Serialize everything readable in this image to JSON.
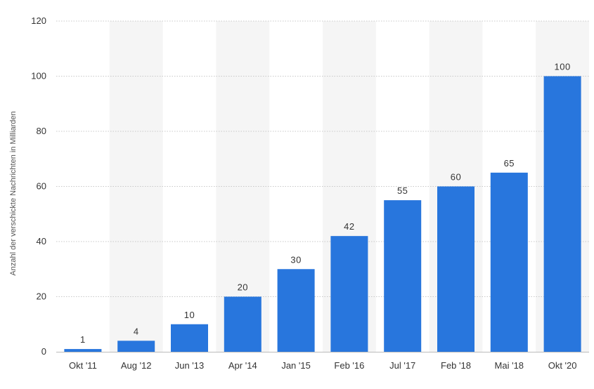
{
  "chart_data": {
    "type": "bar",
    "title": "",
    "xlabel": "",
    "ylabel": "Anzahl der verschickte Nachrichten in Milliarden",
    "categories": [
      "Okt '11",
      "Aug '12",
      "Jun '13",
      "Apr '14",
      "Jan '15",
      "Feb '16",
      "Jul '17",
      "Feb '18",
      "Mai '18",
      "Okt '20"
    ],
    "values": [
      1,
      4,
      10,
      20,
      30,
      42,
      55,
      60,
      65,
      100
    ],
    "value_labels": [
      "1",
      "4",
      "10",
      "20",
      "30",
      "42",
      "55",
      "60",
      "65",
      "100"
    ],
    "ylim": [
      0,
      120
    ],
    "yticks": [
      0,
      20,
      40,
      60,
      80,
      100,
      120
    ],
    "ytick_labels": [
      "0",
      "20",
      "40",
      "60",
      "80",
      "100",
      "120"
    ],
    "grid": true,
    "legend": "none",
    "colors": {
      "bar": "#2876dd",
      "band": "#f5f5f5",
      "grid": "#c8c8c8",
      "text": "#333333"
    }
  }
}
